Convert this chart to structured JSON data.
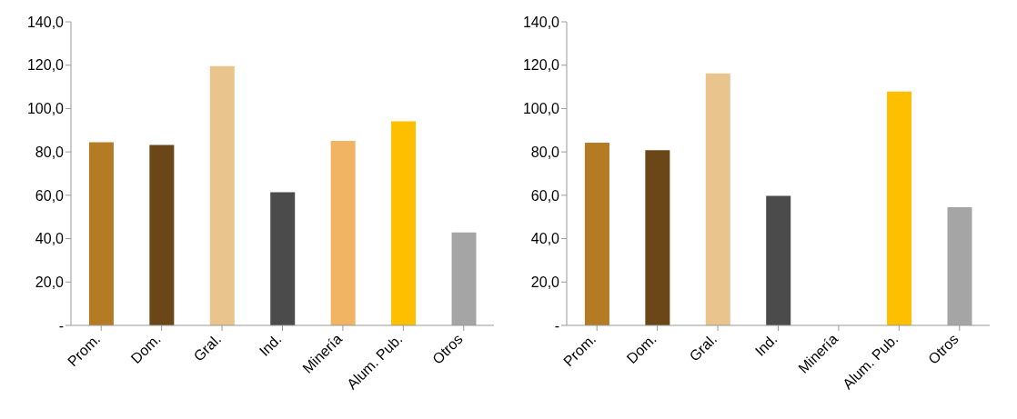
{
  "chart_data": [
    {
      "type": "bar",
      "categories": [
        "Prom.",
        "Dom.",
        "Gral.",
        "Ind.",
        "Minería",
        "Alum. Pub.",
        "Otros"
      ],
      "values": [
        84.5,
        83.2,
        119.6,
        61.4,
        85.1,
        94.1,
        42.9
      ],
      "colors": [
        "#b57a24",
        "#6b4617",
        "#e9c48c",
        "#4b4b4b",
        "#f0b462",
        "#fdbf00",
        "#a5a5a5"
      ],
      "ylim": [
        0,
        140
      ],
      "yticks": [
        {
          "value": 0,
          "label": "-"
        },
        {
          "value": 20,
          "label": "20,0"
        },
        {
          "value": 40,
          "label": "40,0"
        },
        {
          "value": 60,
          "label": "60,0"
        },
        {
          "value": 80,
          "label": "80,0"
        },
        {
          "value": 100,
          "label": "100,0"
        },
        {
          "value": 120,
          "label": "120,0"
        },
        {
          "value": 140,
          "label": "140,0"
        }
      ],
      "grid": false,
      "legend": false
    },
    {
      "type": "bar",
      "categories": [
        "Prom.",
        "Dom.",
        "Gral.",
        "Ind.",
        "Minería",
        "Alum. Pub.",
        "Otros"
      ],
      "values": [
        84.3,
        80.8,
        116.2,
        59.7,
        null,
        107.8,
        54.5
      ],
      "colors": [
        "#b57a24",
        "#6b4617",
        "#e9c48c",
        "#4b4b4b",
        "#f0b462",
        "#fdbf00",
        "#a5a5a5"
      ],
      "ylim": [
        0,
        140
      ],
      "yticks": [
        {
          "value": 0,
          "label": "-"
        },
        {
          "value": 20,
          "label": "20,0"
        },
        {
          "value": 40,
          "label": "40,0"
        },
        {
          "value": 60,
          "label": "60,0"
        },
        {
          "value": 80,
          "label": "80,0"
        },
        {
          "value": 100,
          "label": "100,0"
        },
        {
          "value": 120,
          "label": "120,0"
        },
        {
          "value": 140,
          "label": "140,0"
        }
      ],
      "grid": false,
      "legend": false
    }
  ]
}
